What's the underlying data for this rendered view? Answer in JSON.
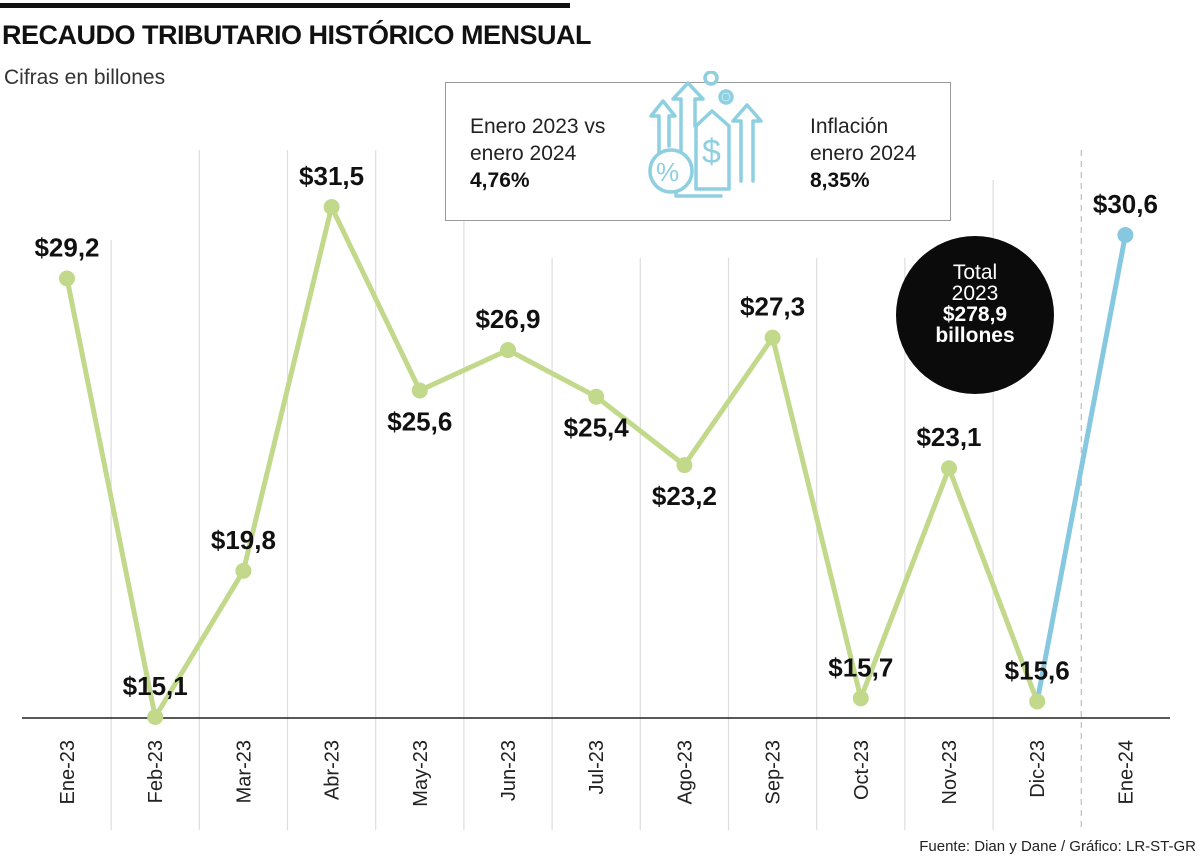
{
  "header": {
    "title": "RECAUDO TRIBUTARIO HISTÓRICO MENSUAL",
    "subtitle": "Cifras en billones"
  },
  "info_box": {
    "left_line1": "Enero 2023 vs",
    "left_line2": "enero 2024",
    "left_value": "4,76%",
    "right_line1": "Inflación",
    "right_line2": "enero 2024",
    "right_value": "8,35%",
    "icon": "tax-growth-icon",
    "icon_color": "#8ecfe0"
  },
  "total": {
    "line1": "Total",
    "line2": "2023",
    "line3": "$278,9",
    "line4": "billones"
  },
  "source": "Fuente: Dian y Dane / Gráfico: LR-ST-GR",
  "colors": {
    "series_2023": "#c2d98b",
    "series_2024": "#87c8e1",
    "axis": "#222222",
    "grid": "#dddddd"
  },
  "chart_data": {
    "type": "line",
    "categories": [
      "Ene-23",
      "Feb-23",
      "Mar-23",
      "Abr-23",
      "May-23",
      "Jun-23",
      "Jul-23",
      "Ago-23",
      "Sep-23",
      "Oct-23",
      "Nov-23",
      "Dic-23",
      "Ene-24"
    ],
    "values": [
      29.2,
      15.1,
      19.8,
      31.5,
      25.6,
      26.9,
      25.4,
      23.2,
      27.3,
      15.7,
      23.1,
      15.6,
      30.6
    ],
    "labels": [
      "$29,2",
      "$15,1",
      "$19,8",
      "$31,5",
      "$25,6",
      "$26,9",
      "$25,4",
      "$23,2",
      "$27,3",
      "$15,7",
      "$23,1",
      "$15,6",
      "$30,6"
    ],
    "ylim": [
      15.1,
      31.5
    ],
    "grid": true,
    "highlight_last_segment": true
  }
}
